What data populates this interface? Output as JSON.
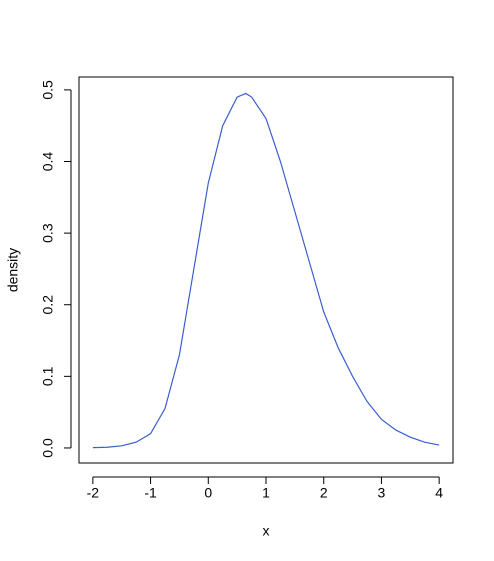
{
  "chart_data": {
    "type": "line",
    "x_label": "x",
    "y_label": "density",
    "x": [
      -2,
      -1.75,
      -1.5,
      -1.25,
      -1,
      -0.75,
      -0.5,
      -0.25,
      0,
      0.25,
      0.5,
      0.65,
      0.75,
      1,
      1.25,
      1.5,
      1.75,
      2,
      2.25,
      2.5,
      2.75,
      3,
      3.25,
      3.5,
      3.75,
      4
    ],
    "series": [
      {
        "color": "#3a5fcd",
        "values": [
          0.0005,
          0.001,
          0.003,
          0.008,
          0.02,
          0.055,
          0.13,
          0.25,
          0.37,
          0.45,
          0.49,
          0.495,
          0.49,
          0.46,
          0.4,
          0.33,
          0.26,
          0.19,
          0.14,
          0.1,
          0.065,
          0.04,
          0.025,
          0.015,
          0.008,
          0.004
        ]
      }
    ],
    "xlim": [
      -2.24,
      4.24
    ],
    "ylim": [
      -0.021,
      0.518
    ],
    "xticks": [
      -2,
      -1,
      0,
      1,
      2,
      3,
      4
    ],
    "yticks": [
      {
        "value": 0,
        "label": "0.0"
      },
      0.1,
      0.2,
      0.3,
      0.4,
      0.5
    ]
  }
}
